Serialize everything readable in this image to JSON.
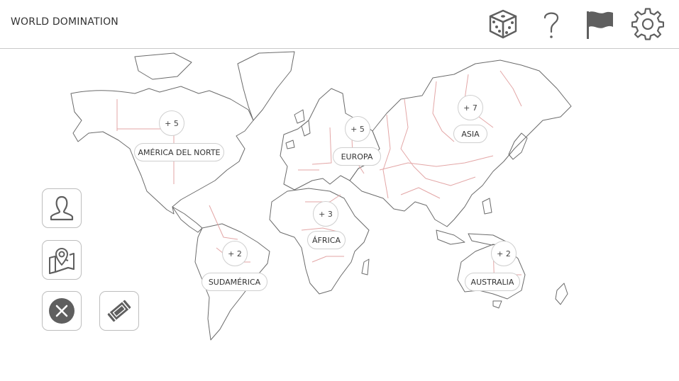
{
  "header": {
    "title": "WORLD DOMINATION",
    "icons": [
      "dice-icon",
      "help-icon",
      "flag-icon",
      "settings-icon"
    ]
  },
  "continents": [
    {
      "id": "north-america",
      "name": "AMÉRICA DEL NORTE",
      "bonus": "+ 5"
    },
    {
      "id": "europe",
      "name": "EUROPA",
      "bonus": "+ 5"
    },
    {
      "id": "asia",
      "name": "ASIA",
      "bonus": "+ 7"
    },
    {
      "id": "africa",
      "name": "ÁFRICA",
      "bonus": "+ 3"
    },
    {
      "id": "south-america",
      "name": "SUDAMÉRICA",
      "bonus": "+ 2"
    },
    {
      "id": "australia",
      "name": "AUSTRALIA",
      "bonus": "+ 2"
    }
  ],
  "side_buttons": [
    "profile-icon",
    "map-pin-icon",
    "close-icon",
    "cards-icon"
  ],
  "colors": {
    "icon": "#5f5f5f",
    "outline": "#6b6b6b",
    "border_line": "#e3a6a6",
    "divider": "#c9c9c9"
  }
}
